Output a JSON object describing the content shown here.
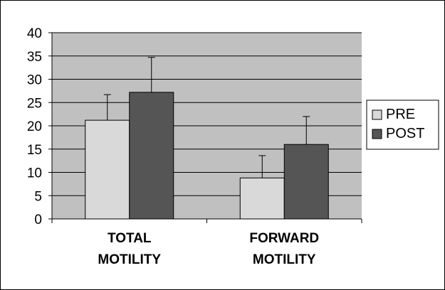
{
  "chart_data": {
    "type": "bar",
    "categories": [
      [
        "TOTAL",
        "MOTILITY"
      ],
      [
        "FORWARD",
        "MOTILITY"
      ]
    ],
    "series": [
      {
        "name": "PRE",
        "color": "#d9d9d9",
        "values": [
          21.2,
          8.8
        ],
        "errors": [
          5.5,
          4.8
        ]
      },
      {
        "name": "POST",
        "color": "#555555",
        "values": [
          27.2,
          16.0
        ],
        "errors": [
          7.5,
          6.0
        ]
      }
    ],
    "ylim": [
      0,
      40
    ],
    "yticks": [
      0,
      5,
      10,
      15,
      20,
      25,
      30,
      35,
      40
    ],
    "plot_background": "#c0c0c0",
    "grid": true,
    "legend": "right",
    "title": "",
    "xlabel": "",
    "ylabel": ""
  }
}
